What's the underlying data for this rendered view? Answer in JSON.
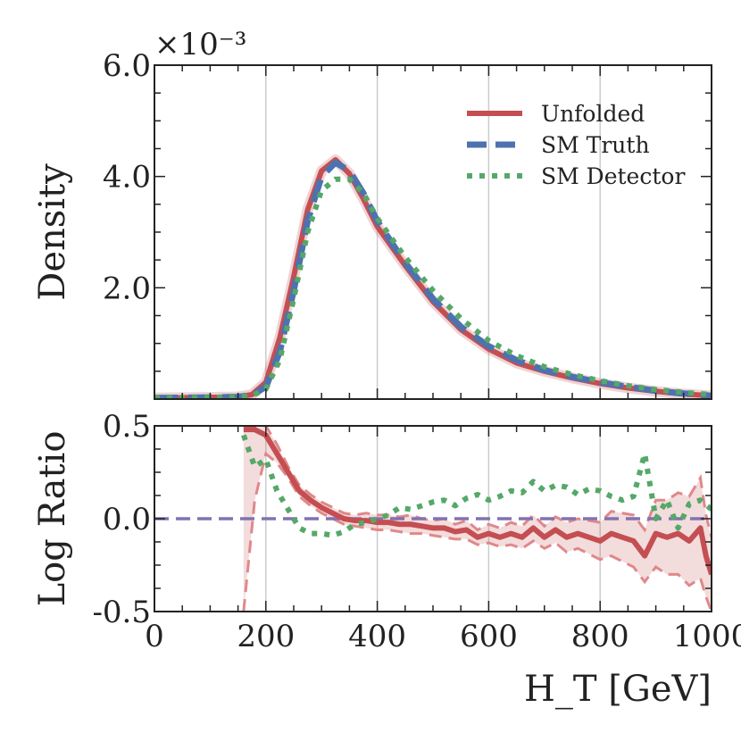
{
  "chart_data": [
    {
      "type": "line",
      "panel": "main",
      "ylabel": "Density",
      "y_scale_label": "×10⁻³",
      "xlim": [
        0,
        1000
      ],
      "ylim": [
        0,
        6.0
      ],
      "yticks": [
        2.0,
        4.0,
        6.0
      ],
      "ytick_labels": [
        "2.0",
        "4.0",
        "6.0"
      ],
      "grid_x": [
        200,
        400,
        600,
        800
      ],
      "legend_position": "top-right",
      "x": [
        0,
        100,
        150,
        175,
        200,
        225,
        250,
        275,
        300,
        325,
        350,
        375,
        400,
        450,
        500,
        550,
        600,
        650,
        700,
        750,
        800,
        850,
        900,
        950,
        1000
      ],
      "series": [
        {
          "name": "Unfolded",
          "style": "solid",
          "color": "#c44e52",
          "values": [
            0.02,
            0.03,
            0.04,
            0.08,
            0.3,
            1.1,
            2.2,
            3.4,
            4.1,
            4.3,
            4.05,
            3.6,
            3.1,
            2.4,
            1.75,
            1.25,
            0.9,
            0.65,
            0.5,
            0.38,
            0.28,
            0.2,
            0.14,
            0.09,
            0.06
          ]
        },
        {
          "name": "SM Truth",
          "style": "dashed",
          "color": "#4c72b0",
          "values": [
            0.02,
            0.03,
            0.04,
            0.07,
            0.22,
            0.85,
            1.95,
            3.2,
            4.0,
            4.25,
            4.1,
            3.7,
            3.2,
            2.45,
            1.8,
            1.3,
            0.95,
            0.7,
            0.52,
            0.4,
            0.3,
            0.22,
            0.15,
            0.1,
            0.06
          ]
        },
        {
          "name": "SM Detector",
          "style": "dotted",
          "color": "#55a868",
          "values": [
            0.02,
            0.03,
            0.04,
            0.06,
            0.18,
            0.7,
            1.8,
            3.0,
            3.75,
            3.95,
            3.95,
            3.7,
            3.25,
            2.55,
            1.95,
            1.45,
            1.05,
            0.78,
            0.58,
            0.44,
            0.33,
            0.24,
            0.17,
            0.12,
            0.08
          ]
        }
      ]
    },
    {
      "type": "line",
      "panel": "ratio",
      "ylabel": "Log Ratio",
      "xlabel": "H_T [GeV]",
      "xlim": [
        0,
        1000
      ],
      "ylim": [
        -0.5,
        0.5
      ],
      "xticks": [
        0,
        200,
        400,
        600,
        800,
        1000
      ],
      "xtick_labels": [
        "0",
        "200",
        "400",
        "600",
        "800",
        "1000"
      ],
      "yticks": [
        -0.5,
        0.0,
        0.5
      ],
      "ytick_labels": [
        "-0.5",
        "0.0",
        "0.5"
      ],
      "reference_line": {
        "value": 0.0,
        "style": "dashed",
        "color": "#8172b2"
      },
      "series": [
        {
          "name": "Unfolded",
          "style": "solid",
          "color": "#c44e52",
          "x": [
            160,
            180,
            200,
            220,
            240,
            260,
            280,
            300,
            320,
            340,
            360,
            380,
            400,
            420,
            440,
            460,
            480,
            500,
            520,
            540,
            560,
            580,
            600,
            620,
            640,
            660,
            680,
            700,
            720,
            740,
            760,
            780,
            800,
            820,
            840,
            860,
            880,
            900,
            920,
            940,
            960,
            980,
            990,
            1000
          ],
          "values": [
            0.48,
            0.48,
            0.45,
            0.35,
            0.25,
            0.15,
            0.1,
            0.06,
            0.03,
            0.0,
            -0.01,
            -0.01,
            -0.02,
            -0.02,
            -0.03,
            -0.03,
            -0.04,
            -0.05,
            -0.05,
            -0.07,
            -0.06,
            -0.1,
            -0.08,
            -0.1,
            -0.08,
            -0.1,
            -0.05,
            -0.1,
            -0.06,
            -0.1,
            -0.08,
            -0.1,
            -0.12,
            -0.08,
            -0.1,
            -0.12,
            -0.2,
            -0.08,
            -0.1,
            -0.08,
            -0.12,
            -0.05,
            -0.2,
            -0.3
          ],
          "band_low": [
            -0.5,
            0.1,
            0.35,
            0.3,
            0.22,
            0.12,
            0.07,
            0.03,
            0.0,
            -0.03,
            -0.04,
            -0.05,
            -0.06,
            -0.06,
            -0.07,
            -0.08,
            -0.08,
            -0.09,
            -0.1,
            -0.11,
            -0.11,
            -0.14,
            -0.13,
            -0.15,
            -0.14,
            -0.16,
            -0.12,
            -0.16,
            -0.13,
            -0.18,
            -0.16,
            -0.19,
            -0.22,
            -0.2,
            -0.23,
            -0.26,
            -0.34,
            -0.26,
            -0.3,
            -0.3,
            -0.36,
            -0.32,
            -0.42,
            -0.5
          ],
          "band_high": [
            0.5,
            0.5,
            0.5,
            0.4,
            0.28,
            0.18,
            0.13,
            0.09,
            0.06,
            0.03,
            0.02,
            0.03,
            0.02,
            0.02,
            0.01,
            0.02,
            0.0,
            -0.01,
            0.0,
            -0.03,
            -0.01,
            -0.06,
            -0.03,
            -0.05,
            -0.02,
            -0.04,
            0.02,
            -0.04,
            0.01,
            -0.02,
            0.0,
            -0.01,
            -0.02,
            0.04,
            0.03,
            0.02,
            -0.06,
            0.1,
            0.1,
            0.14,
            0.12,
            0.22,
            0.02,
            -0.1
          ]
        },
        {
          "name": "SM Detector",
          "style": "dotted",
          "color": "#55a868",
          "x": [
            160,
            180,
            200,
            220,
            240,
            260,
            280,
            300,
            320,
            340,
            360,
            380,
            400,
            420,
            440,
            460,
            480,
            500,
            520,
            540,
            560,
            580,
            600,
            620,
            640,
            660,
            680,
            700,
            720,
            740,
            760,
            780,
            800,
            820,
            840,
            860,
            880,
            900,
            920,
            940,
            960,
            980,
            1000
          ],
          "values": [
            0.45,
            0.28,
            0.32,
            0.15,
            0.05,
            -0.05,
            -0.08,
            -0.08,
            -0.09,
            -0.07,
            -0.03,
            -0.02,
            0.0,
            0.02,
            0.06,
            0.05,
            0.07,
            0.09,
            0.1,
            0.07,
            0.11,
            0.13,
            0.1,
            0.12,
            0.15,
            0.14,
            0.2,
            0.15,
            0.18,
            0.17,
            0.13,
            0.16,
            0.15,
            0.12,
            0.1,
            0.12,
            0.35,
            0.0,
            0.1,
            -0.05,
            0.08,
            0.1,
            0.05
          ]
        }
      ]
    }
  ]
}
